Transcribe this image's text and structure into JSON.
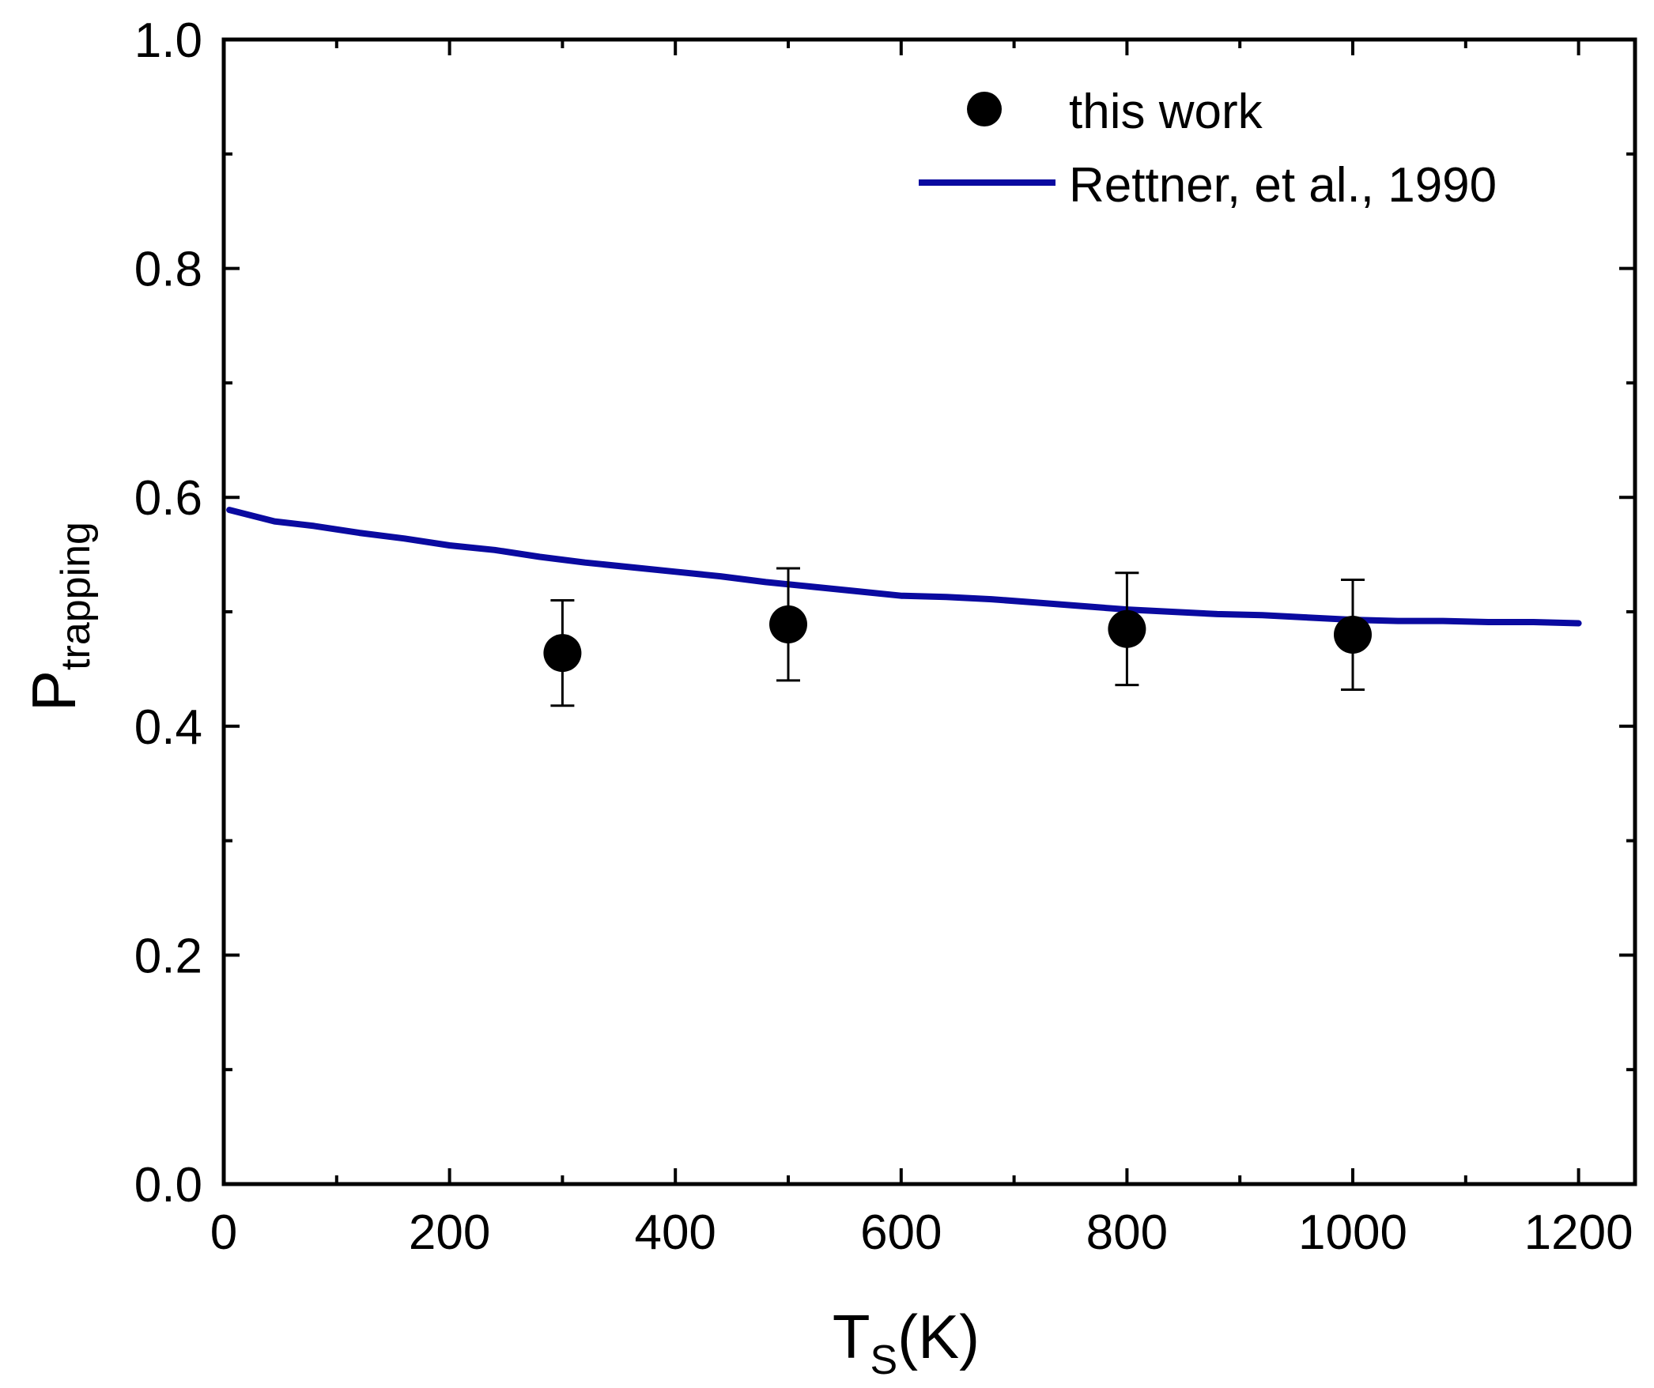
{
  "chart_data": {
    "type": "scatter",
    "xlabel": {
      "main": "T",
      "sub": "S",
      "suffix": "(K)"
    },
    "ylabel": {
      "main": "P",
      "sub": "trapping"
    },
    "xlim": [
      0,
      1250
    ],
    "ylim": [
      0.0,
      1.0
    ],
    "x_ticks": [
      0,
      200,
      400,
      600,
      800,
      1000,
      1200
    ],
    "x_tick_labels": [
      "0",
      "200",
      "400",
      "600",
      "800",
      "1000",
      "1200"
    ],
    "x_minor_ticks": [
      100,
      300,
      500,
      700,
      900,
      1100
    ],
    "y_ticks": [
      0.0,
      0.2,
      0.4,
      0.6,
      0.8,
      1.0
    ],
    "y_tick_labels": [
      "0.0",
      "0.2",
      "0.4",
      "0.6",
      "0.8",
      "1.0"
    ],
    "y_minor_ticks": [
      0.1,
      0.3,
      0.5,
      0.7,
      0.9
    ],
    "grid": false,
    "legend_position": "top-right",
    "series": [
      {
        "name": "this work",
        "kind": "points-with-errorbars",
        "color": "#000000",
        "points": [
          {
            "x": 300,
            "y": 0.464,
            "err": 0.046
          },
          {
            "x": 500,
            "y": 0.489,
            "err": 0.049
          },
          {
            "x": 800,
            "y": 0.485,
            "err": 0.049
          },
          {
            "x": 1000,
            "y": 0.48,
            "err": 0.048
          }
        ]
      },
      {
        "name": "Rettner, et al., 1990",
        "kind": "line",
        "color": "#0a0aa0",
        "x": [
          5,
          45,
          80,
          120,
          160,
          200,
          240,
          280,
          320,
          360,
          400,
          440,
          480,
          520,
          560,
          600,
          640,
          680,
          720,
          760,
          800,
          840,
          880,
          920,
          960,
          1000,
          1040,
          1080,
          1120,
          1160,
          1200
        ],
        "y": [
          0.589,
          0.579,
          0.575,
          0.569,
          0.564,
          0.558,
          0.554,
          0.548,
          0.543,
          0.539,
          0.535,
          0.531,
          0.526,
          0.522,
          0.518,
          0.514,
          0.513,
          0.511,
          0.508,
          0.505,
          0.502,
          0.5,
          0.498,
          0.497,
          0.495,
          0.493,
          0.492,
          0.492,
          0.491,
          0.491,
          0.49
        ]
      }
    ]
  }
}
